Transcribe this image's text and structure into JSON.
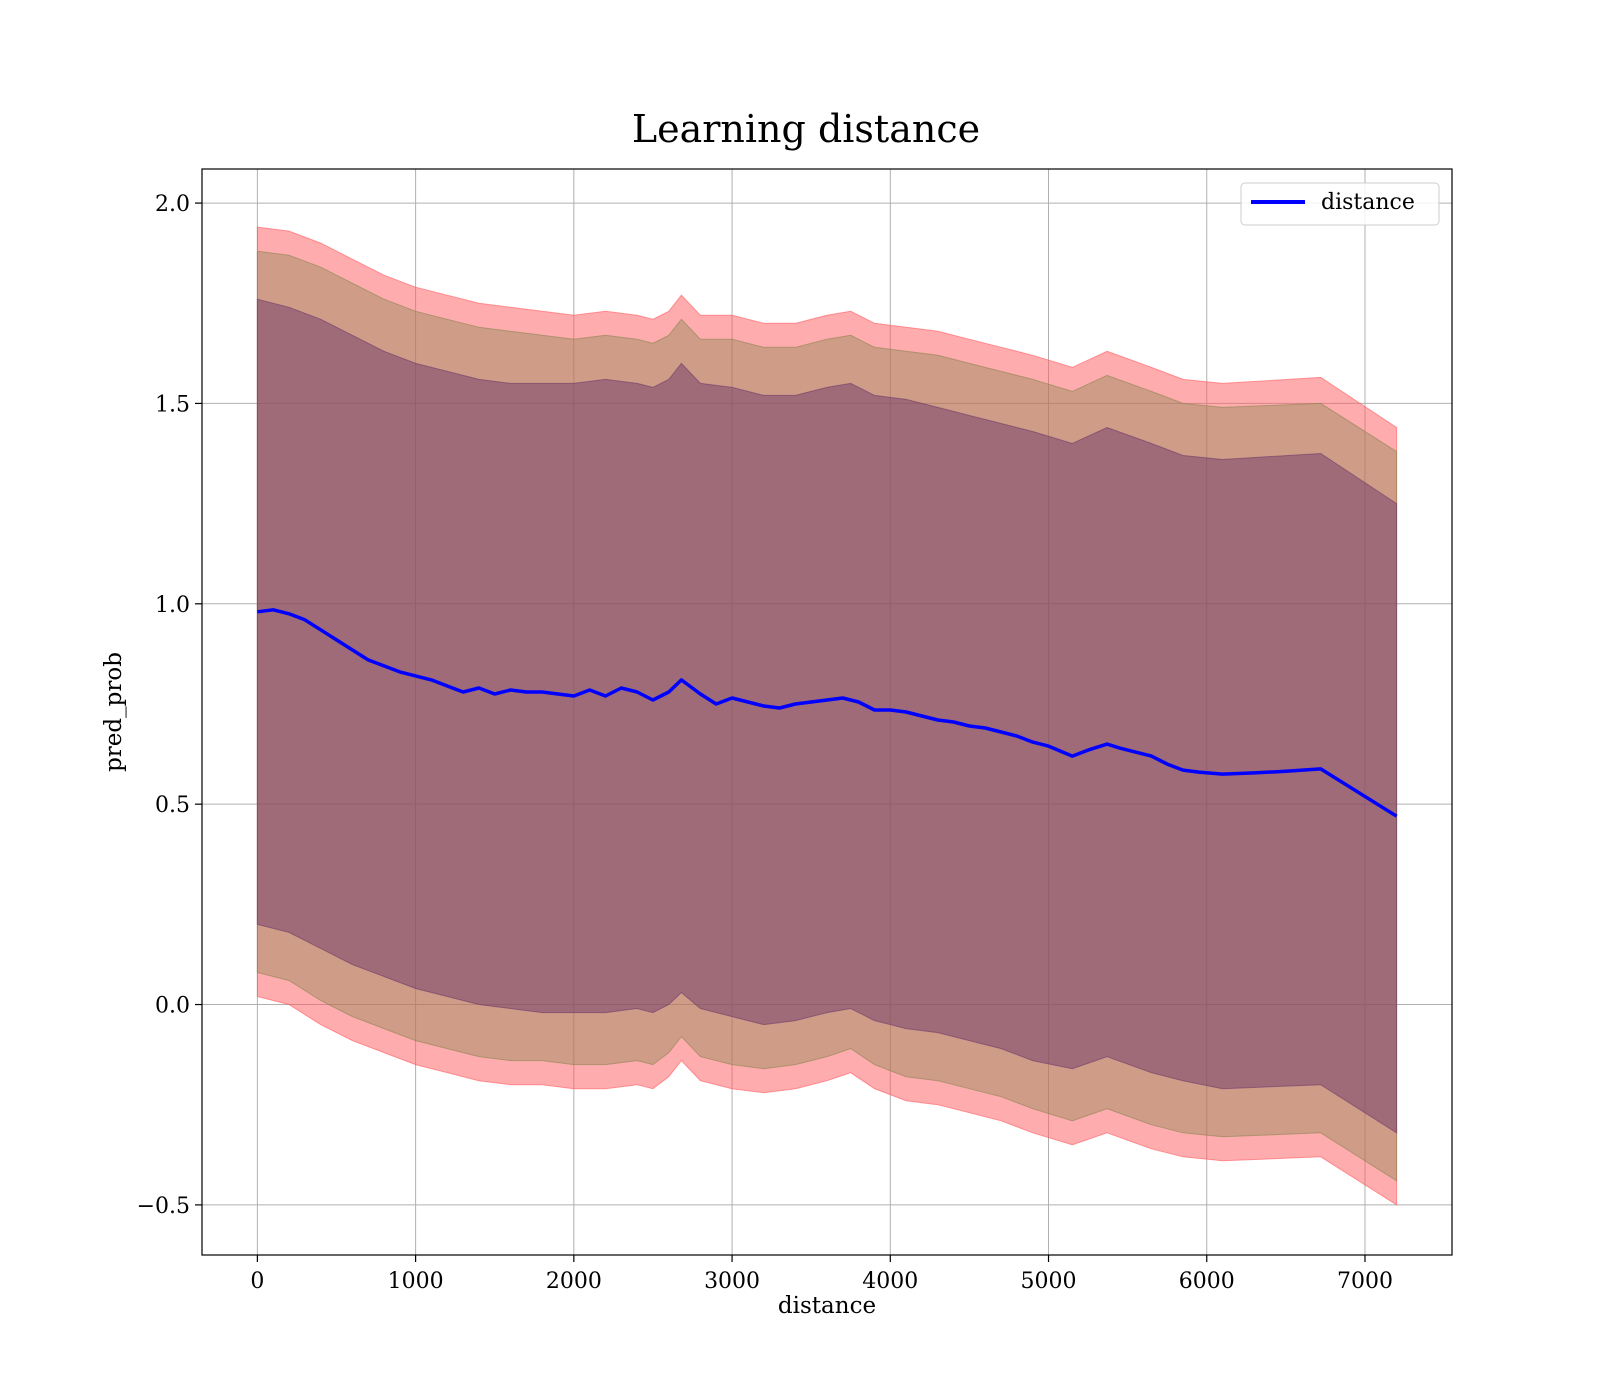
{
  "chart_data": {
    "type": "area",
    "title": "Learning distance",
    "xlabel": "distance",
    "ylabel": "pred_prob",
    "xlim": [
      -350,
      7550
    ],
    "ylim": [
      -0.625,
      2.085
    ],
    "grid": true,
    "legend_position": "top-right",
    "x_ticks": [
      0,
      1000,
      2000,
      3000,
      4000,
      5000,
      6000,
      7000
    ],
    "x_tick_labels": [
      "0",
      "1000",
      "2000",
      "3000",
      "4000",
      "5000",
      "6000",
      "7000"
    ],
    "y_ticks": [
      -0.5,
      0.0,
      0.5,
      1.0,
      1.5,
      2.0
    ],
    "y_tick_labels": [
      "−0.5",
      "0.0",
      "0.5",
      "1.0",
      "1.5",
      "2.0"
    ],
    "series": [
      {
        "name": "distance",
        "color": "#0000ff",
        "x": [
          0,
          100,
          200,
          300,
          400,
          500,
          600,
          700,
          800,
          900,
          1000,
          1100,
          1200,
          1300,
          1400,
          1500,
          1600,
          1700,
          1800,
          1900,
          2000,
          2100,
          2200,
          2300,
          2400,
          2500,
          2600,
          2680,
          2800,
          2900,
          3000,
          3100,
          3200,
          3300,
          3400,
          3500,
          3600,
          3700,
          3800,
          3900,
          4000,
          4100,
          4200,
          4300,
          4400,
          4500,
          4600,
          4700,
          4800,
          4900,
          5000,
          5150,
          5250,
          5370,
          5450,
          5550,
          5650,
          5750,
          5850,
          5950,
          6100,
          6300,
          6500,
          6720,
          7200
        ],
        "values": [
          0.98,
          0.985,
          0.975,
          0.96,
          0.935,
          0.91,
          0.885,
          0.86,
          0.845,
          0.83,
          0.82,
          0.81,
          0.795,
          0.78,
          0.79,
          0.775,
          0.785,
          0.78,
          0.78,
          0.775,
          0.77,
          0.785,
          0.77,
          0.79,
          0.78,
          0.76,
          0.78,
          0.81,
          0.775,
          0.75,
          0.765,
          0.755,
          0.745,
          0.74,
          0.75,
          0.755,
          0.76,
          0.765,
          0.755,
          0.735,
          0.735,
          0.73,
          0.72,
          0.71,
          0.705,
          0.695,
          0.69,
          0.68,
          0.67,
          0.655,
          0.645,
          0.62,
          0.635,
          0.65,
          0.64,
          0.63,
          0.62,
          0.6,
          0.585,
          0.58,
          0.575,
          0.578,
          0.582,
          0.588,
          0.47
        ]
      }
    ],
    "bands": [
      {
        "fill": "#ff5a5f",
        "opacity": 0.5,
        "x": [
          0,
          200,
          400,
          600,
          800,
          1000,
          1200,
          1400,
          1600,
          1800,
          2000,
          2200,
          2400,
          2500,
          2600,
          2680,
          2800,
          3000,
          3200,
          3400,
          3600,
          3750,
          3900,
          4100,
          4300,
          4500,
          4700,
          4900,
          5150,
          5370,
          5650,
          5850,
          6100,
          6720,
          7200
        ],
        "upper": [
          1.94,
          1.93,
          1.9,
          1.86,
          1.82,
          1.79,
          1.77,
          1.75,
          1.74,
          1.73,
          1.72,
          1.73,
          1.72,
          1.71,
          1.73,
          1.77,
          1.72,
          1.72,
          1.7,
          1.7,
          1.72,
          1.73,
          1.7,
          1.69,
          1.68,
          1.66,
          1.64,
          1.62,
          1.59,
          1.63,
          1.59,
          1.56,
          1.55,
          1.565,
          1.44
        ],
        "lower": [
          0.02,
          0.0,
          -0.05,
          -0.09,
          -0.12,
          -0.15,
          -0.17,
          -0.19,
          -0.2,
          -0.2,
          -0.21,
          -0.21,
          -0.2,
          -0.21,
          -0.18,
          -0.14,
          -0.19,
          -0.21,
          -0.22,
          -0.21,
          -0.19,
          -0.17,
          -0.21,
          -0.24,
          -0.25,
          -0.27,
          -0.29,
          -0.32,
          -0.35,
          -0.32,
          -0.36,
          -0.38,
          -0.39,
          -0.38,
          -0.5
        ]
      },
      {
        "fill": "#8c8650",
        "opacity": 0.42,
        "x": [
          0,
          200,
          400,
          600,
          800,
          1000,
          1200,
          1400,
          1600,
          1800,
          2000,
          2200,
          2400,
          2500,
          2600,
          2680,
          2800,
          3000,
          3200,
          3400,
          3600,
          3750,
          3900,
          4100,
          4300,
          4500,
          4700,
          4900,
          5150,
          5370,
          5650,
          5850,
          6100,
          6720,
          7200
        ],
        "upper": [
          1.88,
          1.87,
          1.84,
          1.8,
          1.76,
          1.73,
          1.71,
          1.69,
          1.68,
          1.67,
          1.66,
          1.67,
          1.66,
          1.65,
          1.67,
          1.71,
          1.66,
          1.66,
          1.64,
          1.64,
          1.66,
          1.67,
          1.64,
          1.63,
          1.62,
          1.6,
          1.58,
          1.56,
          1.53,
          1.57,
          1.53,
          1.5,
          1.49,
          1.5,
          1.38
        ],
        "lower": [
          0.08,
          0.06,
          0.01,
          -0.03,
          -0.06,
          -0.09,
          -0.11,
          -0.13,
          -0.14,
          -0.14,
          -0.15,
          -0.15,
          -0.14,
          -0.15,
          -0.12,
          -0.08,
          -0.13,
          -0.15,
          -0.16,
          -0.15,
          -0.13,
          -0.11,
          -0.15,
          -0.18,
          -0.19,
          -0.21,
          -0.23,
          -0.26,
          -0.29,
          -0.26,
          -0.3,
          -0.32,
          -0.33,
          -0.32,
          -0.44
        ]
      },
      {
        "fill": "#703a6a",
        "opacity": 0.5,
        "x": [
          0,
          200,
          400,
          600,
          800,
          1000,
          1200,
          1400,
          1600,
          1800,
          2000,
          2200,
          2400,
          2500,
          2600,
          2680,
          2800,
          3000,
          3200,
          3400,
          3600,
          3750,
          3900,
          4100,
          4300,
          4500,
          4700,
          4900,
          5150,
          5370,
          5650,
          5850,
          6100,
          6720,
          7200
        ],
        "upper": [
          1.76,
          1.74,
          1.71,
          1.67,
          1.63,
          1.6,
          1.58,
          1.56,
          1.55,
          1.55,
          1.55,
          1.56,
          1.55,
          1.54,
          1.56,
          1.6,
          1.55,
          1.54,
          1.52,
          1.52,
          1.54,
          1.55,
          1.52,
          1.51,
          1.49,
          1.47,
          1.45,
          1.43,
          1.4,
          1.44,
          1.4,
          1.37,
          1.36,
          1.375,
          1.25
        ],
        "lower": [
          0.2,
          0.18,
          0.14,
          0.1,
          0.07,
          0.04,
          0.02,
          0.0,
          -0.01,
          -0.02,
          -0.02,
          -0.02,
          -0.01,
          -0.02,
          0.0,
          0.03,
          -0.01,
          -0.03,
          -0.05,
          -0.04,
          -0.02,
          -0.01,
          -0.04,
          -0.06,
          -0.07,
          -0.09,
          -0.11,
          -0.14,
          -0.16,
          -0.13,
          -0.17,
          -0.19,
          -0.21,
          -0.2,
          -0.32
        ]
      }
    ]
  }
}
